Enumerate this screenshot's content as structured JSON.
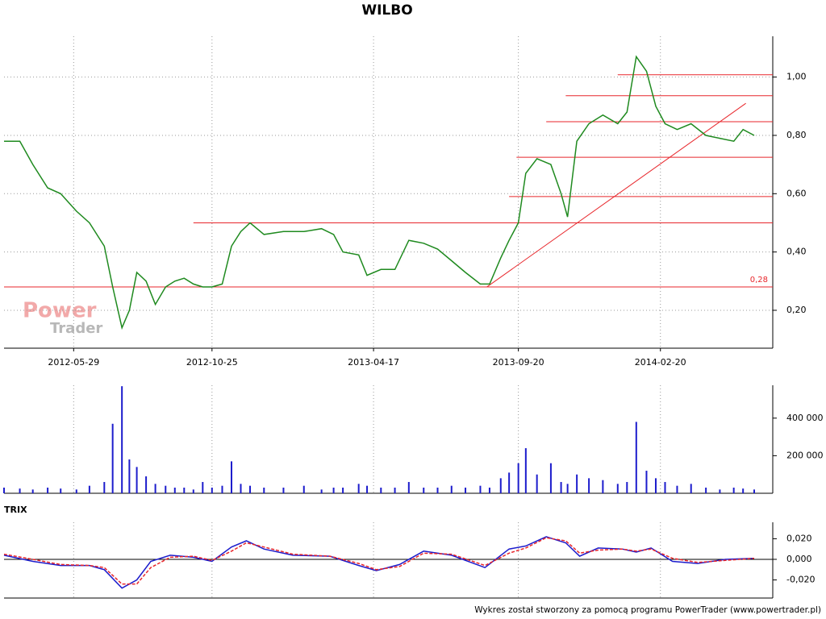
{
  "title": "WILBO",
  "footer": "Wykres został stworzony za pomocą programu PowerTrader (www.powertrader.pl)",
  "watermark": [
    "Power",
    "Trader"
  ],
  "chart_data": [
    {
      "type": "line",
      "xlim": [
        "2012-03-15",
        "2014-06-21"
      ],
      "xticks": [
        "2012-05-29",
        "2012-10-25",
        "2013-04-17",
        "2013-09-20",
        "2014-02-20"
      ],
      "ylim": [
        0.07,
        1.14
      ],
      "yticks": [
        {
          "value": 0.2,
          "label": "0,20"
        },
        {
          "value": 0.4,
          "label": "0,40"
        },
        {
          "value": 0.6,
          "label": "0,60"
        },
        {
          "value": 0.8,
          "label": "0,80"
        },
        {
          "value": 1.0,
          "label": "1,00"
        }
      ],
      "grid": true,
      "x": [
        "2012-03-15",
        "2012-04-01",
        "2012-04-15",
        "2012-05-01",
        "2012-05-15",
        "2012-06-01",
        "2012-06-15",
        "2012-07-01",
        "2012-07-10",
        "2012-07-20",
        "2012-07-28",
        "2012-08-05",
        "2012-08-15",
        "2012-08-25",
        "2012-09-05",
        "2012-09-15",
        "2012-09-25",
        "2012-10-05",
        "2012-10-15",
        "2012-10-25",
        "2012-11-05",
        "2012-11-15",
        "2012-11-25",
        "2012-12-05",
        "2012-12-20",
        "2013-01-10",
        "2013-02-01",
        "2013-02-20",
        "2013-03-05",
        "2013-03-15",
        "2013-04-01",
        "2013-04-10",
        "2013-04-25",
        "2013-05-10",
        "2013-05-25",
        "2013-06-10",
        "2013-06-25",
        "2013-07-10",
        "2013-07-25",
        "2013-08-10",
        "2013-08-20",
        "2013-09-01",
        "2013-09-10",
        "2013-09-20",
        "2013-09-28",
        "2013-10-10",
        "2013-10-25",
        "2013-11-05",
        "2013-11-12",
        "2013-11-22",
        "2013-12-05",
        "2013-12-20",
        "2014-01-05",
        "2014-01-15",
        "2014-01-25",
        "2014-02-05",
        "2014-02-15",
        "2014-02-25",
        "2014-03-10",
        "2014-03-25",
        "2014-04-10",
        "2014-04-25",
        "2014-05-10",
        "2014-05-20",
        "2014-06-01"
      ],
      "series": [
        {
          "color": "#1f8a1f",
          "values": [
            0.78,
            0.78,
            0.7,
            0.62,
            0.6,
            0.54,
            0.5,
            0.42,
            0.28,
            0.14,
            0.2,
            0.33,
            0.3,
            0.22,
            0.28,
            0.3,
            0.31,
            0.29,
            0.28,
            0.28,
            0.29,
            0.42,
            0.47,
            0.5,
            0.46,
            0.47,
            0.47,
            0.48,
            0.46,
            0.4,
            0.39,
            0.32,
            0.34,
            0.34,
            0.44,
            0.43,
            0.41,
            0.37,
            0.33,
            0.29,
            0.29,
            0.38,
            0.44,
            0.5,
            0.67,
            0.72,
            0.7,
            0.6,
            0.52,
            0.78,
            0.84,
            0.87,
            0.84,
            0.88,
            1.07,
            1.02,
            0.9,
            0.84,
            0.82,
            0.84,
            0.8,
            0.79,
            0.78,
            0.82,
            0.8
          ]
        }
      ],
      "level_color": "#e8262b",
      "levels": [
        {
          "value": 0.28,
          "start": "2012-03-15",
          "label": "0,28"
        },
        {
          "value": 0.5,
          "start": "2012-10-05"
        },
        {
          "value": 0.59,
          "start": "2013-09-10"
        },
        {
          "value": 0.725,
          "start": "2013-09-18"
        },
        {
          "value": 0.847,
          "start": "2013-10-20"
        },
        {
          "value": 0.936,
          "start": "2013-11-10"
        },
        {
          "value": 1.008,
          "start": "2014-01-05"
        }
      ],
      "trend_line": {
        "start": "2013-08-17",
        "end": "2014-05-23",
        "from": 0.28,
        "to": 0.91
      }
    },
    {
      "type": "bar",
      "xlim": [
        "2012-03-15",
        "2014-06-21"
      ],
      "ylim": [
        0,
        575000
      ],
      "yticks": [
        {
          "value": 200000,
          "label": "200 000"
        },
        {
          "value": 400000,
          "label": "400 000"
        }
      ],
      "color": "#1c1ccc",
      "x": [
        "2012-03-15",
        "2012-04-01",
        "2012-04-15",
        "2012-05-01",
        "2012-05-15",
        "2012-06-01",
        "2012-06-15",
        "2012-07-01",
        "2012-07-10",
        "2012-07-20",
        "2012-07-28",
        "2012-08-05",
        "2012-08-15",
        "2012-08-25",
        "2012-09-05",
        "2012-09-15",
        "2012-09-25",
        "2012-10-05",
        "2012-10-15",
        "2012-10-25",
        "2012-11-05",
        "2012-11-15",
        "2012-11-25",
        "2012-12-05",
        "2012-12-20",
        "2013-01-10",
        "2013-02-01",
        "2013-02-20",
        "2013-03-05",
        "2013-03-15",
        "2013-04-01",
        "2013-04-10",
        "2013-04-25",
        "2013-05-10",
        "2013-05-25",
        "2013-06-10",
        "2013-06-25",
        "2013-07-10",
        "2013-07-25",
        "2013-08-10",
        "2013-08-20",
        "2013-09-01",
        "2013-09-10",
        "2013-09-20",
        "2013-09-28",
        "2013-10-10",
        "2013-10-25",
        "2013-11-05",
        "2013-11-12",
        "2013-11-22",
        "2013-12-05",
        "2013-12-20",
        "2014-01-05",
        "2014-01-15",
        "2014-01-25",
        "2014-02-05",
        "2014-02-15",
        "2014-02-25",
        "2014-03-10",
        "2014-03-25",
        "2014-04-10",
        "2014-04-25",
        "2014-05-10",
        "2014-05-20",
        "2014-06-01"
      ],
      "values": [
        30000,
        25000,
        20000,
        30000,
        25000,
        20000,
        40000,
        60000,
        370000,
        570000,
        180000,
        140000,
        90000,
        50000,
        40000,
        30000,
        30000,
        20000,
        60000,
        30000,
        40000,
        170000,
        50000,
        40000,
        30000,
        30000,
        40000,
        20000,
        30000,
        30000,
        50000,
        40000,
        30000,
        30000,
        60000,
        30000,
        30000,
        40000,
        30000,
        40000,
        30000,
        80000,
        110000,
        160000,
        240000,
        100000,
        160000,
        60000,
        50000,
        100000,
        80000,
        70000,
        50000,
        60000,
        380000,
        120000,
        80000,
        60000,
        40000,
        50000,
        30000,
        20000,
        30000,
        25000,
        20000
      ]
    },
    {
      "type": "line",
      "title": "TRIX",
      "xlim": [
        "2012-03-15",
        "2014-06-21"
      ],
      "ylim": [
        -0.0376,
        0.036
      ],
      "yticks": [
        {
          "value": 0.02,
          "label": "0,020"
        },
        {
          "value": 0,
          "label": "0,000"
        },
        {
          "value": -0.02,
          "label": "-0,020"
        }
      ],
      "x": [
        "2012-03-15",
        "2012-04-15",
        "2012-05-15",
        "2012-06-15",
        "2012-07-01",
        "2012-07-20",
        "2012-08-05",
        "2012-08-20",
        "2012-09-10",
        "2012-10-05",
        "2012-10-25",
        "2012-11-15",
        "2012-12-01",
        "2012-12-20",
        "2013-01-20",
        "2013-03-01",
        "2013-04-01",
        "2013-04-20",
        "2013-05-15",
        "2013-06-10",
        "2013-07-10",
        "2013-08-15",
        "2013-09-10",
        "2013-09-28",
        "2013-10-20",
        "2013-11-10",
        "2013-11-25",
        "2013-12-15",
        "2014-01-10",
        "2014-01-25",
        "2014-02-10",
        "2014-03-05",
        "2014-04-01",
        "2014-05-01",
        "2014-06-01"
      ],
      "series": [
        {
          "color": "#1c1ccc",
          "values": [
            0.004,
            -0.002,
            -0.006,
            -0.006,
            -0.01,
            -0.028,
            -0.02,
            -0.002,
            0.004,
            0.002,
            -0.002,
            0.012,
            0.018,
            0.01,
            0.004,
            0.003,
            -0.006,
            -0.011,
            -0.005,
            0.008,
            0.004,
            -0.008,
            0.01,
            0.013,
            0.022,
            0.016,
            0.003,
            0.011,
            0.01,
            0.007,
            0.011,
            -0.002,
            -0.004,
            0.0,
            0.001
          ]
        },
        {
          "color": "#e8262b",
          "dashed": true,
          "values": [
            0.005,
            0.0,
            -0.005,
            -0.006,
            -0.008,
            -0.024,
            -0.024,
            -0.008,
            0.002,
            0.003,
            -0.001,
            0.008,
            0.016,
            0.012,
            0.005,
            0.003,
            -0.004,
            -0.01,
            -0.007,
            0.006,
            0.005,
            -0.006,
            0.006,
            0.011,
            0.021,
            0.018,
            0.006,
            0.009,
            0.01,
            0.008,
            0.01,
            0.001,
            -0.003,
            -0.001,
            0.001
          ]
        }
      ]
    }
  ]
}
